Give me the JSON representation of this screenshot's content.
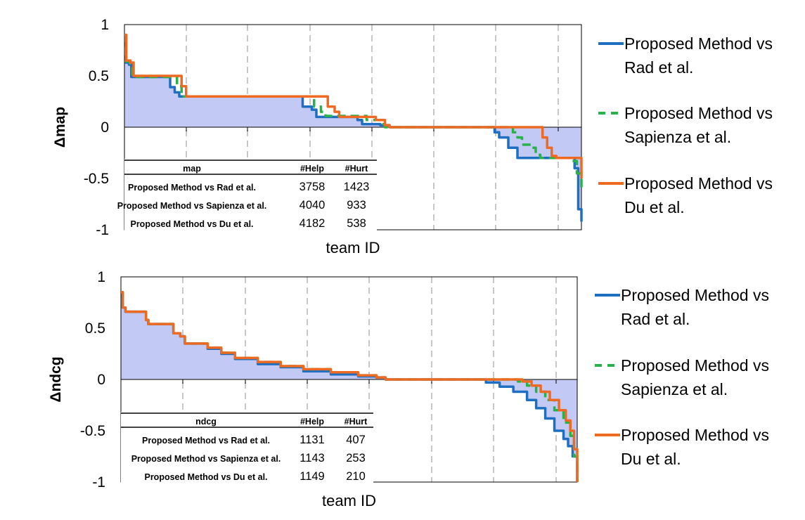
{
  "chart_data": [
    {
      "type": "line",
      "ylabel": "Δmap",
      "xlabel": "team ID",
      "ylim": [
        -1,
        1
      ],
      "yticks": [
        "1",
        "0.5",
        "0",
        "-0.5",
        "-1"
      ],
      "grid": "vertical dashed",
      "legend_position": "right",
      "colors": {
        "rad": "#1f6fc1",
        "sapienza": "#27b24a",
        "du": "#ee6a22",
        "fill": "#c3c9f5"
      },
      "series": [
        {
          "name": "Proposed Method vs Rad et al.",
          "style": "solid",
          "color": "#1f6fc1",
          "points": [
            [
              0,
              0.9
            ],
            [
              0.3,
              0.63
            ],
            [
              1.0,
              0.61
            ],
            [
              1.5,
              0.49
            ],
            [
              9.5,
              0.49
            ],
            [
              10,
              0.39
            ],
            [
              11,
              0.34
            ],
            [
              12,
              0.3
            ],
            [
              38.5,
              0.3
            ],
            [
              39,
              0.2
            ],
            [
              41,
              0.17
            ],
            [
              42,
              0.1
            ],
            [
              50,
              0.1
            ],
            [
              51,
              0.07
            ],
            [
              52,
              0.03
            ],
            [
              56,
              0.02
            ],
            [
              58,
              0.0
            ],
            [
              80,
              0.0
            ],
            [
              81,
              -0.05
            ],
            [
              82,
              -0.1
            ],
            [
              84,
              -0.2
            ],
            [
              86,
              -0.3
            ],
            [
              95,
              -0.3
            ],
            [
              97,
              -0.3
            ],
            [
              98.5,
              -0.4
            ],
            [
              99.3,
              -0.8
            ],
            [
              100,
              -0.92
            ]
          ]
        },
        {
          "name": "Proposed Method vs Sapienza et al.",
          "style": "dashed",
          "color": "#27b24a",
          "points": [
            [
              0,
              0.9
            ],
            [
              0.3,
              0.64
            ],
            [
              1.2,
              0.62
            ],
            [
              1.7,
              0.49
            ],
            [
              10.5,
              0.49
            ],
            [
              11.5,
              0.4
            ],
            [
              12.5,
              0.32
            ],
            [
              13,
              0.3
            ],
            [
              40.5,
              0.3
            ],
            [
              41.5,
              0.2
            ],
            [
              43,
              0.15
            ],
            [
              44,
              0.11
            ],
            [
              51,
              0.11
            ],
            [
              53,
              0.07
            ],
            [
              56,
              0.03
            ],
            [
              57,
              0.0
            ],
            [
              84,
              0.0
            ],
            [
              85,
              -0.05
            ],
            [
              86,
              -0.1
            ],
            [
              87,
              -0.17
            ],
            [
              89,
              -0.2
            ],
            [
              90,
              -0.27
            ],
            [
              91,
              -0.3
            ],
            [
              97,
              -0.3
            ],
            [
              98,
              -0.33
            ],
            [
              99,
              -0.45
            ],
            [
              100,
              -0.6
            ]
          ]
        },
        {
          "name": "Proposed Method vs Du et al.",
          "style": "solid",
          "color": "#ee6a22",
          "points": [
            [
              0,
              0.9
            ],
            [
              0.4,
              0.65
            ],
            [
              1.3,
              0.63
            ],
            [
              2,
              0.5
            ],
            [
              11,
              0.5
            ],
            [
              12.5,
              0.4
            ],
            [
              13.5,
              0.3
            ],
            [
              44,
              0.3
            ],
            [
              44.5,
              0.2
            ],
            [
              46,
              0.15
            ],
            [
              47,
              0.1
            ],
            [
              54,
              0.1
            ],
            [
              55,
              0.07
            ],
            [
              57,
              0.02
            ],
            [
              58,
              0.0
            ],
            [
              90.5,
              0.0
            ],
            [
              91.5,
              -0.1
            ],
            [
              92.5,
              -0.2
            ],
            [
              93.5,
              -0.28
            ],
            [
              94.5,
              -0.3
            ],
            [
              99.3,
              -0.3
            ],
            [
              100,
              -0.5
            ]
          ]
        }
      ],
      "table": {
        "headers": [
          "map",
          "#Help",
          "#Hurt"
        ],
        "rows": [
          [
            "Proposed Method vs Rad et al.",
            "3758",
            "1423"
          ],
          [
            "Proposed Method vs Sapienza et al.",
            "4040",
            "933"
          ],
          [
            "Proposed Method vs Du et al.",
            "4182",
            "538"
          ]
        ]
      }
    },
    {
      "type": "line",
      "ylabel": "Δndcg",
      "xlabel": "team ID",
      "ylim": [
        -1,
        1
      ],
      "yticks": [
        "1",
        "0.5",
        "0",
        "-0.5",
        "-1"
      ],
      "grid": "vertical dashed",
      "legend_position": "right",
      "colors": {
        "rad": "#1f6fc1",
        "sapienza": "#27b24a",
        "du": "#ee6a22",
        "fill": "#c3c9f5"
      },
      "series": [
        {
          "name": "Proposed Method vs Rad et al.",
          "style": "solid",
          "color": "#1f6fc1",
          "points": [
            [
              0,
              0.85
            ],
            [
              0.4,
              0.7
            ],
            [
              1,
              0.66
            ],
            [
              5,
              0.66
            ],
            [
              5.5,
              0.58
            ],
            [
              6,
              0.54
            ],
            [
              11,
              0.54
            ],
            [
              11.5,
              0.45
            ],
            [
              13,
              0.42
            ],
            [
              14,
              0.35
            ],
            [
              18,
              0.35
            ],
            [
              19,
              0.3
            ],
            [
              22,
              0.25
            ],
            [
              25,
              0.2
            ],
            [
              30,
              0.15
            ],
            [
              35,
              0.12
            ],
            [
              40,
              0.08
            ],
            [
              46,
              0.05
            ],
            [
              52,
              0.03
            ],
            [
              56,
              0.02
            ],
            [
              58,
              0.0
            ],
            [
              78,
              0.0
            ],
            [
              80,
              -0.03
            ],
            [
              83,
              -0.07
            ],
            [
              86,
              -0.12
            ],
            [
              89,
              -0.2
            ],
            [
              91,
              -0.28
            ],
            [
              93,
              -0.38
            ],
            [
              95,
              -0.5
            ],
            [
              97,
              -0.58
            ],
            [
              98,
              -0.65
            ],
            [
              99,
              -0.75
            ],
            [
              100,
              -1.0
            ]
          ]
        },
        {
          "name": "Proposed Method vs Sapienza et al.",
          "style": "dashed",
          "color": "#27b24a",
          "points": [
            [
              0,
              0.85
            ],
            [
              0.4,
              0.7
            ],
            [
              1,
              0.66
            ],
            [
              5,
              0.66
            ],
            [
              5.5,
              0.58
            ],
            [
              6,
              0.54
            ],
            [
              11,
              0.54
            ],
            [
              11.5,
              0.45
            ],
            [
              13,
              0.42
            ],
            [
              14,
              0.35
            ],
            [
              18,
              0.35
            ],
            [
              19,
              0.31
            ],
            [
              22,
              0.26
            ],
            [
              25,
              0.21
            ],
            [
              30,
              0.17
            ],
            [
              35,
              0.13
            ],
            [
              40,
              0.1
            ],
            [
              46,
              0.07
            ],
            [
              52,
              0.04
            ],
            [
              56,
              0.02
            ],
            [
              58,
              0.0
            ],
            [
              86,
              0.0
            ],
            [
              87,
              -0.02
            ],
            [
              89,
              -0.06
            ],
            [
              91,
              -0.12
            ],
            [
              93,
              -0.2
            ],
            [
              95,
              -0.3
            ],
            [
              97,
              -0.42
            ],
            [
              98.5,
              -0.55
            ],
            [
              99.3,
              -0.75
            ],
            [
              100,
              -1.0
            ]
          ]
        },
        {
          "name": "Proposed Method vs Du et al.",
          "style": "solid",
          "color": "#ee6a22",
          "points": [
            [
              0,
              0.85
            ],
            [
              0.4,
              0.7
            ],
            [
              1,
              0.66
            ],
            [
              5,
              0.66
            ],
            [
              5.5,
              0.58
            ],
            [
              6,
              0.54
            ],
            [
              11,
              0.54
            ],
            [
              11.5,
              0.45
            ],
            [
              13,
              0.42
            ],
            [
              14,
              0.35
            ],
            [
              18,
              0.35
            ],
            [
              19,
              0.31
            ],
            [
              22,
              0.26
            ],
            [
              25,
              0.21
            ],
            [
              30,
              0.17
            ],
            [
              35,
              0.13
            ],
            [
              40,
              0.1
            ],
            [
              46,
              0.07
            ],
            [
              52,
              0.04
            ],
            [
              56,
              0.02
            ],
            [
              58,
              0.0
            ],
            [
              87,
              0.0
            ],
            [
              88,
              -0.02
            ],
            [
              90,
              -0.06
            ],
            [
              92,
              -0.12
            ],
            [
              94,
              -0.2
            ],
            [
              96,
              -0.3
            ],
            [
              97.5,
              -0.4
            ],
            [
              98.5,
              -0.5
            ],
            [
              99.3,
              -0.68
            ],
            [
              100,
              -1.0
            ]
          ]
        }
      ],
      "table": {
        "headers": [
          "ndcg",
          "#Help",
          "#Hurt"
        ],
        "rows": [
          [
            "Proposed Method vs Rad et al.",
            "1131",
            "407"
          ],
          [
            "Proposed Method vs Sapienza et al.",
            "1143",
            "253"
          ],
          [
            "Proposed Method vs Du et al.",
            "1149",
            "210"
          ]
        ]
      }
    }
  ],
  "legend_lines": [
    [
      "Proposed Method vs",
      "Rad et al."
    ],
    [
      "Proposed Method vs",
      "Sapienza et al."
    ],
    [
      "Proposed Method vs",
      "Du et al."
    ]
  ]
}
